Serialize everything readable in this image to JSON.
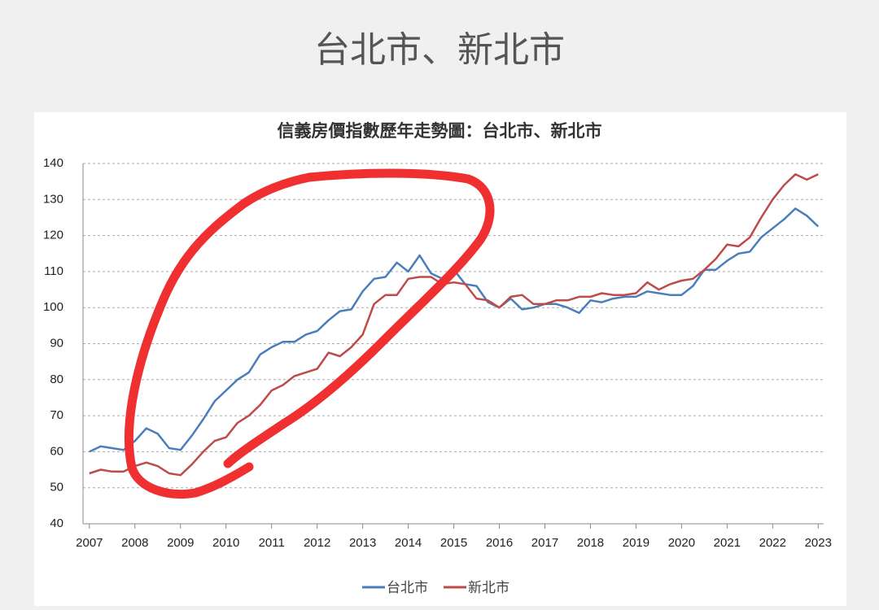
{
  "heading": "台北市、新北市",
  "chart_data": {
    "type": "line",
    "title": "信義房價指數歷年走勢圖：台北市、新北市",
    "x": [
      2007,
      2007.25,
      2007.5,
      2007.75,
      2008,
      2008.25,
      2008.5,
      2008.75,
      2009,
      2009.25,
      2009.5,
      2009.75,
      2010,
      2010.25,
      2010.5,
      2010.75,
      2011,
      2011.25,
      2011.5,
      2011.75,
      2012,
      2012.25,
      2012.5,
      2012.75,
      2013,
      2013.25,
      2013.5,
      2013.75,
      2014,
      2014.25,
      2014.5,
      2014.75,
      2015,
      2015.25,
      2015.5,
      2015.75,
      2016,
      2016.25,
      2016.5,
      2016.75,
      2017,
      2017.25,
      2017.5,
      2017.75,
      2018,
      2018.25,
      2018.5,
      2018.75,
      2019,
      2019.25,
      2019.5,
      2019.75,
      2020,
      2020.25,
      2020.5,
      2020.75,
      2021,
      2021.25,
      2021.5,
      2021.75,
      2022,
      2022.25,
      2022.5,
      2022.75,
      2023
    ],
    "series": [
      {
        "name": "台北市",
        "color": "#4a7ebb",
        "values": [
          60,
          61.5,
          61,
          60.5,
          63,
          66.5,
          65,
          61,
          60.5,
          64.5,
          69,
          74,
          77,
          80,
          82,
          87,
          89,
          90.5,
          90.5,
          92.5,
          93.5,
          96.5,
          99,
          99.5,
          104.5,
          108,
          108.5,
          112.5,
          110,
          114.5,
          109.5,
          108,
          110.5,
          106.5,
          106,
          101.5,
          100,
          102.5,
          99.5,
          100,
          101,
          101,
          100,
          98.5,
          102,
          101.5,
          102.5,
          103,
          103,
          104.5,
          104,
          103.5,
          103.5,
          106,
          110.5,
          110.5,
          113,
          115,
          115.5,
          119.5,
          122,
          124.5,
          127.5,
          125.5,
          122.5
        ]
      },
      {
        "name": "新北市",
        "color": "#be4b48",
        "values": [
          54,
          55,
          54.5,
          54.5,
          56,
          57,
          56,
          54,
          53.5,
          56.5,
          60,
          63,
          64,
          68,
          70,
          73,
          77,
          78.5,
          81,
          82,
          83,
          87.5,
          86.5,
          89,
          92.5,
          101,
          103.5,
          103.5,
          108,
          108.5,
          108.5,
          106.5,
          107,
          106.5,
          102.5,
          102,
          100,
          103,
          103.5,
          101,
          101,
          102,
          102,
          103,
          103,
          104,
          103.5,
          103.5,
          104,
          107,
          105,
          106.5,
          107.5,
          108,
          110.5,
          113.5,
          117.5,
          117,
          119.5,
          125,
          130,
          134,
          137,
          135.5,
          137
        ]
      }
    ],
    "xlim": [
      2006.86,
      2023.12
    ],
    "xticks": [
      2007,
      2008,
      2009,
      2010,
      2011,
      2012,
      2013,
      2014,
      2015,
      2016,
      2017,
      2018,
      2019,
      2020,
      2021,
      2022,
      2023
    ],
    "ylim": [
      40,
      140
    ],
    "yticks": [
      40,
      50,
      60,
      70,
      80,
      90,
      100,
      110,
      120,
      130,
      140
    ],
    "grid": true
  }
}
